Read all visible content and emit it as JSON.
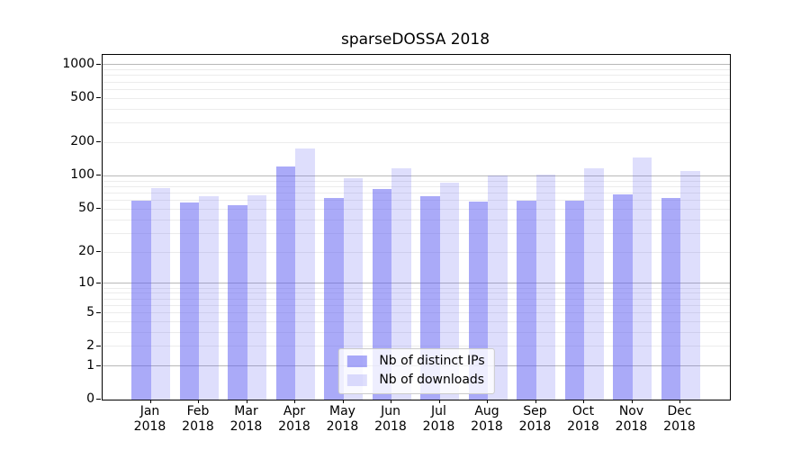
{
  "chart_data": {
    "type": "bar",
    "title": "sparseDOSSA 2018",
    "scale": "log1p",
    "xlabel": "",
    "ylabel": "",
    "categories": [
      "Jan",
      "Feb",
      "Mar",
      "Apr",
      "May",
      "Jun",
      "Jul",
      "Aug",
      "Sep",
      "Oct",
      "Nov",
      "Dec"
    ],
    "category_year": "2018",
    "series": [
      {
        "name": "Nb of distinct IPs",
        "color": "rgba(92,92,242,0.52)",
        "values": [
          60,
          57,
          54,
          122,
          63,
          76,
          66,
          59,
          60,
          60,
          68,
          63
        ]
      },
      {
        "name": "Nb of downloads",
        "color": "rgba(92,92,242,0.20)",
        "values": [
          78,
          66,
          67,
          176,
          95,
          117,
          87,
          100,
          103,
          118,
          147,
          111
        ]
      }
    ],
    "yticks": [
      0,
      1,
      2,
      5,
      10,
      20,
      50,
      100,
      200,
      500,
      1000
    ],
    "major_gridlines": [
      1,
      10,
      100,
      1000
    ],
    "ylim": [
      0,
      1226
    ],
    "grid": true,
    "legend_position": "lower center inside"
  },
  "colors": {
    "background": "#ffffff",
    "axis": "#000000",
    "major_grid": "#b8b8b8",
    "minor_grid": "#ececec",
    "legend_border": "#cccccc",
    "legend_background": "rgba(255,255,255,0.8)"
  }
}
